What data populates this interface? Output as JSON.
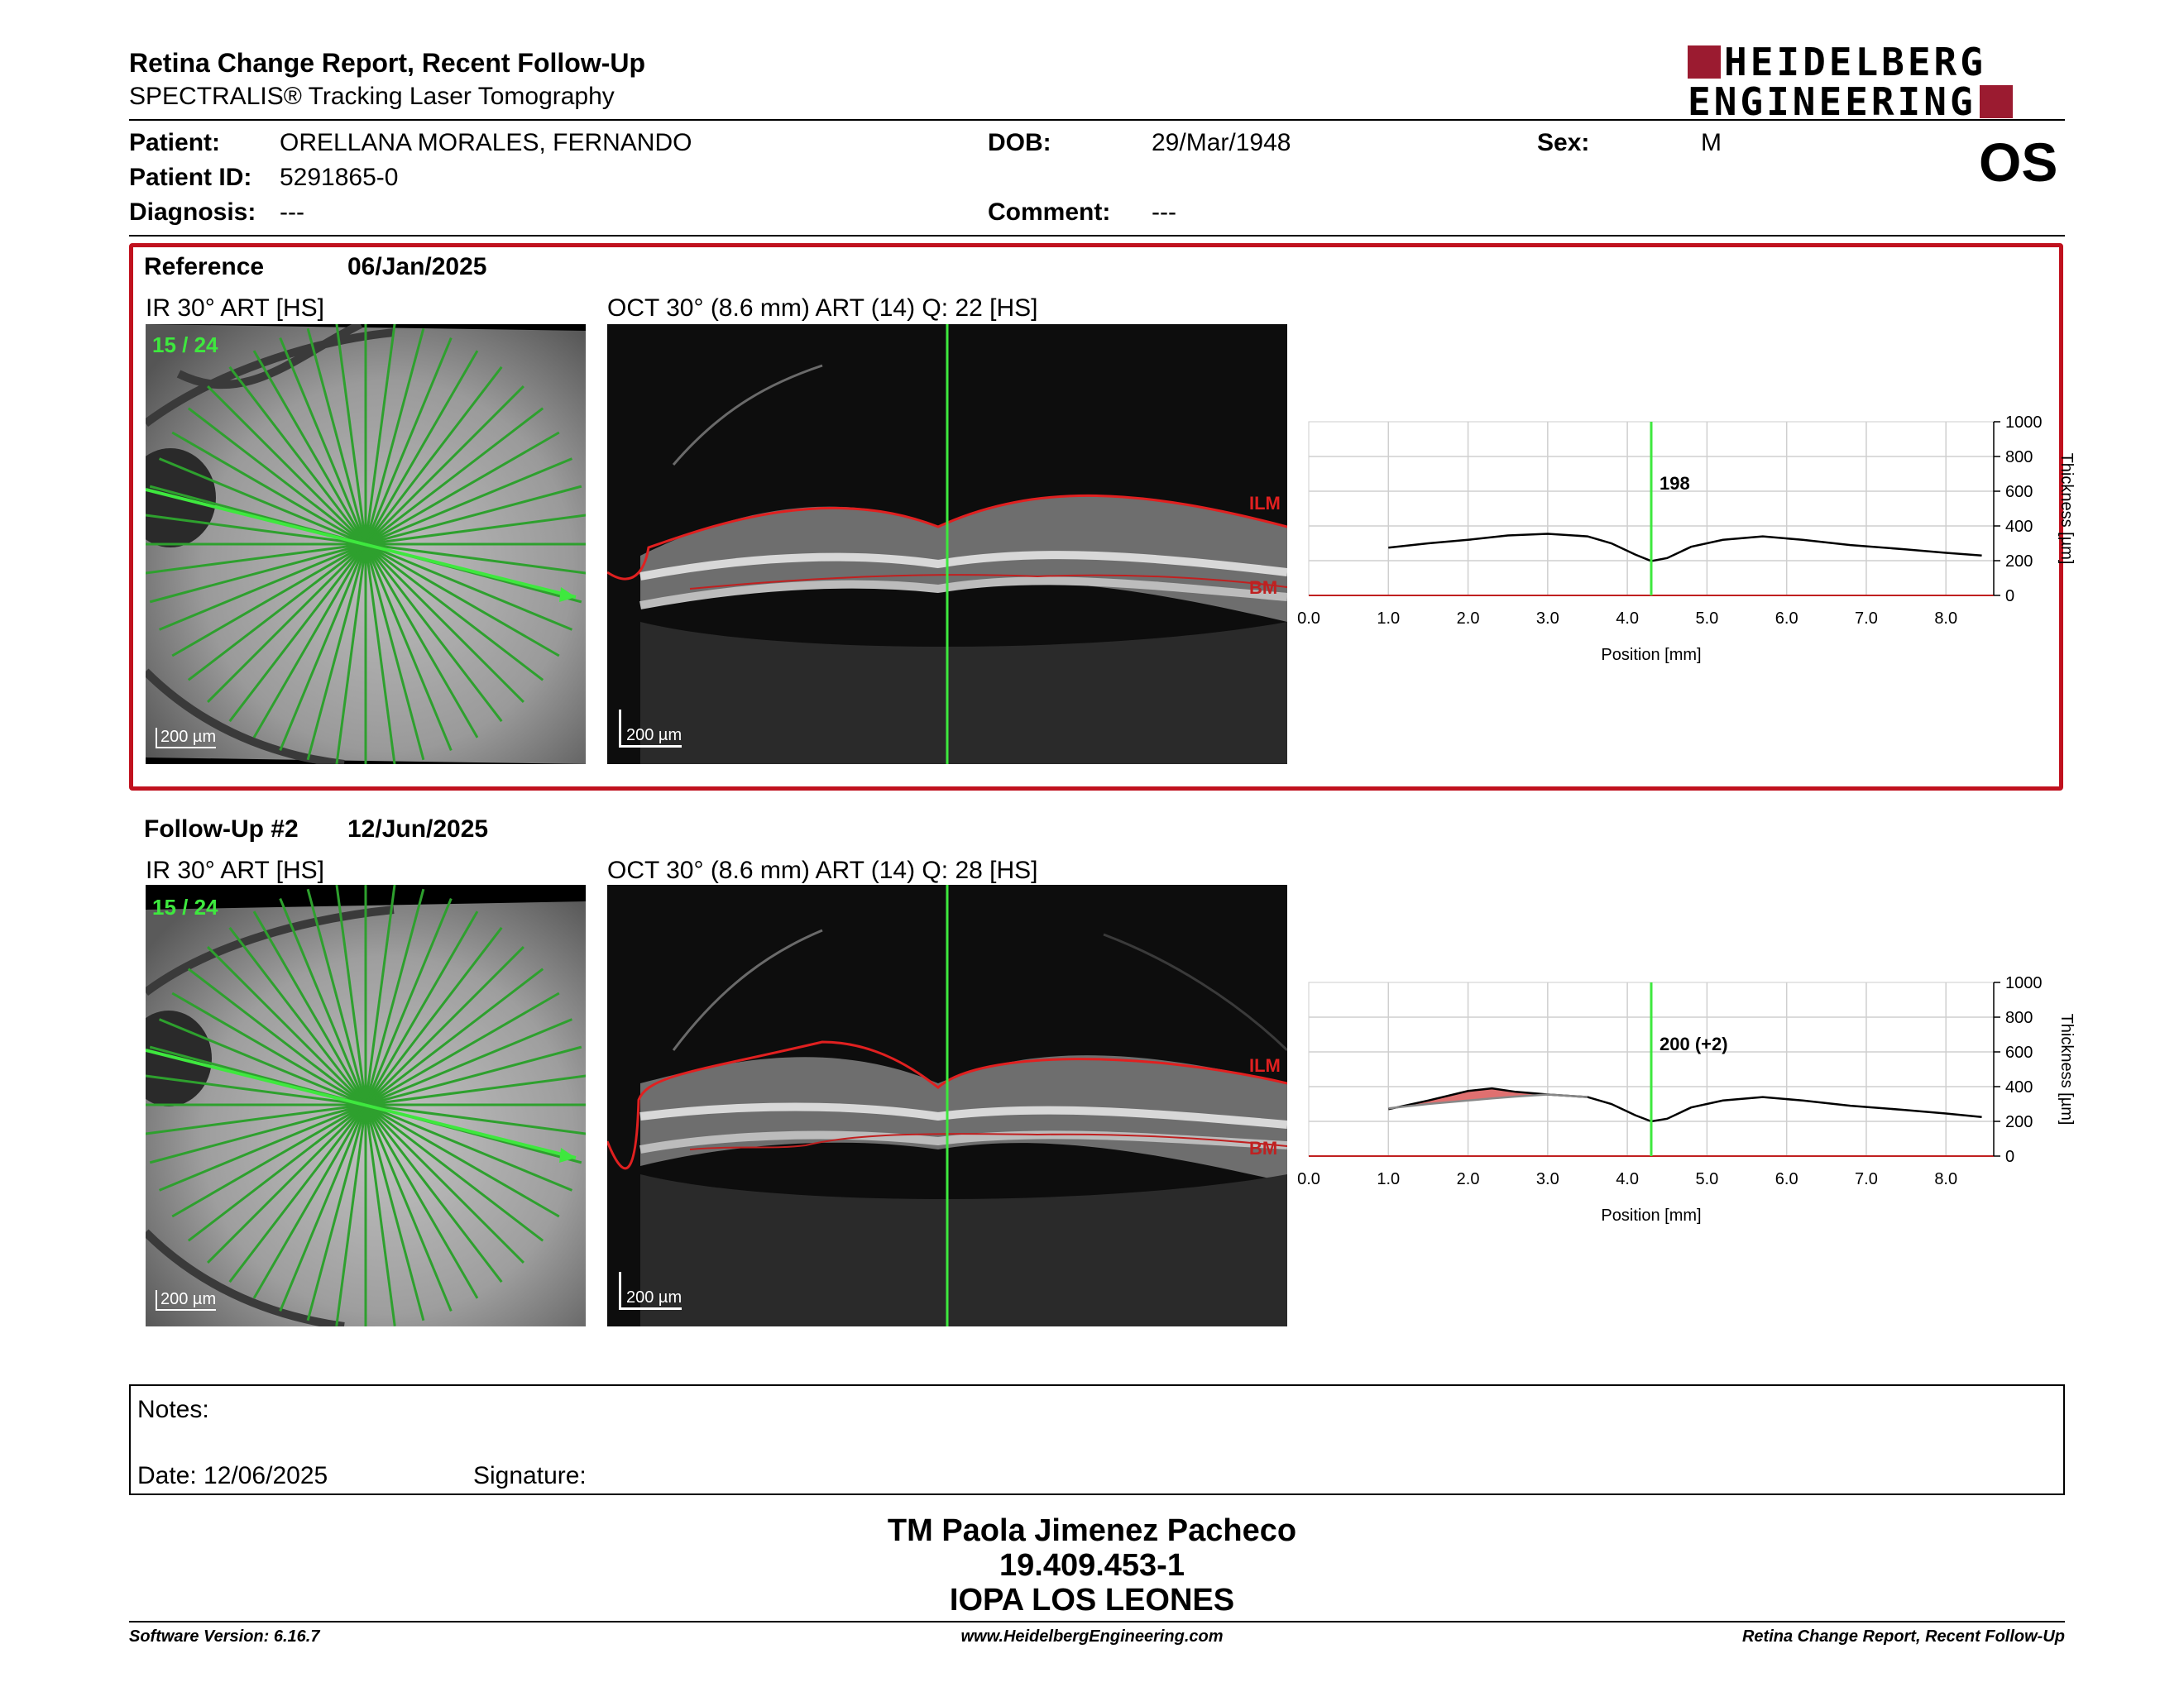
{
  "report": {
    "title": "Retina Change Report, Recent Follow-Up",
    "subtitle": "SPECTRALIS® Tracking Laser Tomography"
  },
  "logo": {
    "line1": "HEIDELBERG",
    "line2": "ENGINEERING",
    "color": "#9b1b30"
  },
  "patient": {
    "patient_label": "Patient:",
    "patient_value": "ORELLANA MORALES, FERNANDO",
    "id_label": "Patient ID:",
    "id_value": "5291865-0",
    "diagnosis_label": "Diagnosis:",
    "diagnosis_value": "---",
    "dob_label": "DOB:",
    "dob_value": "29/Mar/1948",
    "comment_label": "Comment:",
    "comment_value": "---",
    "sex_label": "Sex:",
    "sex_value": "M",
    "eye": "OS"
  },
  "reference": {
    "label": "Reference",
    "date": "06/Jan/2025",
    "ir_label": "IR 30° ART [HS]",
    "oct_label": "OCT 30° (8.6 mm) ART (14) Q: 22 [HS]",
    "scan_index": "15 / 24",
    "scale_ir": "200 µm",
    "scale_oct": "200 µm",
    "ilm": "ILM",
    "bm": "BM",
    "thickness_value": "198"
  },
  "followup": {
    "label": "Follow-Up #2",
    "date": "12/Jun/2025",
    "ir_label": "IR 30° ART [HS]",
    "oct_label": "OCT 30° (8.6 mm) ART (14) Q: 28 [HS]",
    "scan_index": "15 / 24",
    "scale_ir": "200 µm",
    "scale_oct": "200 µm",
    "ilm": "ILM",
    "bm": "BM",
    "thickness_value": "200 (+2)"
  },
  "chart_common": {
    "xlabel": "Position [mm]",
    "ylabel": "Thickness [µm]",
    "x_ticks": [
      "0.0",
      "1.0",
      "2.0",
      "3.0",
      "4.0",
      "5.0",
      "6.0",
      "7.0",
      "8.0"
    ],
    "y_ticks": [
      "0",
      "200",
      "400",
      "600",
      "800",
      "1000"
    ]
  },
  "chart_data": [
    {
      "type": "line",
      "xlabel": "Position [mm]",
      "ylabel": "Thickness [µm]",
      "xlim": [
        0,
        8.6
      ],
      "ylim": [
        0,
        1000
      ],
      "cursor_x": 4.3,
      "annotation": "198",
      "series": [
        {
          "x": [
            1.0,
            1.5,
            2.0,
            2.5,
            3.0,
            3.5,
            3.8,
            4.1,
            4.3,
            4.5,
            4.8,
            5.2,
            5.7,
            6.2,
            6.8,
            7.5,
            8.0,
            8.45
          ],
          "y": [
            275,
            300,
            320,
            345,
            355,
            340,
            300,
            235,
            198,
            215,
            280,
            320,
            340,
            320,
            290,
            265,
            245,
            230
          ]
        }
      ]
    },
    {
      "type": "line",
      "xlabel": "Position [mm]",
      "ylabel": "Thickness [µm]",
      "xlim": [
        0,
        8.6
      ],
      "ylim": [
        0,
        1000
      ],
      "cursor_x": 4.3,
      "annotation": "200 (+2)",
      "series": [
        {
          "x": [
            1.0,
            1.5,
            2.0,
            2.3,
            2.6,
            3.0,
            3.5,
            3.8,
            4.1,
            4.3,
            4.5,
            4.8,
            5.2,
            5.7,
            6.2,
            6.8,
            7.5,
            8.0,
            8.45
          ],
          "y": [
            270,
            320,
            375,
            390,
            370,
            355,
            340,
            300,
            235,
            200,
            215,
            280,
            320,
            340,
            320,
            290,
            265,
            245,
            225
          ]
        },
        {
          "x": [
            1.0,
            1.5,
            2.0,
            2.3,
            2.6,
            3.0,
            3.5
          ],
          "y": [
            275,
            300,
            320,
            332,
            343,
            355,
            340
          ]
        }
      ],
      "increase_color": "#e07070"
    }
  ],
  "notes": {
    "notes_label": "Notes:",
    "date_label": "Date: 12/06/2025",
    "signature_label": "Signature:"
  },
  "signature_block": {
    "name": "TM Paola Jimenez Pacheco",
    "rut": "19.409.453-1",
    "institution": "IOPA LOS LEONES"
  },
  "footer": {
    "software": "Software Version: 6.16.7",
    "website": "www.HeidelbergEngineering.com",
    "report": "Retina Change Report, Recent Follow-Up"
  }
}
